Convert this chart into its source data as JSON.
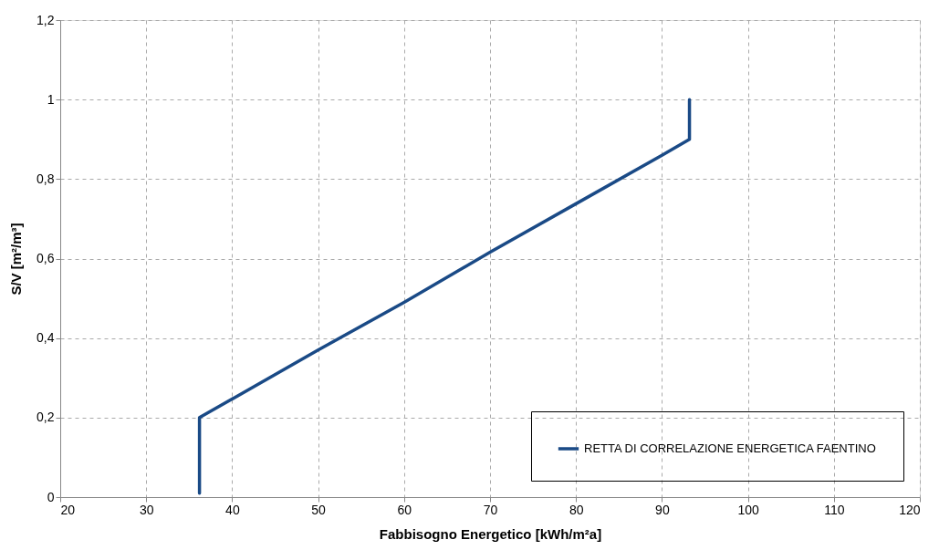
{
  "chart_data": {
    "type": "line",
    "xlabel": "Fabbisogno Energetico [kWh/m²a]",
    "ylabel": "S/V [m²/m³]",
    "series": [
      {
        "name": "RETTA DI CORRELAZIONE ENERGETICA FAENTINO",
        "color": "#1a4a86",
        "x": [
          36.2,
          36.2,
          50,
          60,
          70,
          80,
          90,
          93.2,
          93.2
        ],
        "values": [
          0.01,
          0.2,
          0.37,
          0.49,
          0.616,
          0.738,
          0.86,
          0.9,
          1.0
        ]
      }
    ],
    "xlim": [
      20,
      120
    ],
    "xticks": [
      20,
      30,
      40,
      50,
      60,
      70,
      80,
      90,
      100,
      110,
      120
    ],
    "ylim": [
      0,
      1.2
    ],
    "yticks": [
      0,
      {
        "value": 0.2,
        "label": "0,2"
      },
      {
        "value": 0.4,
        "label": "0,4"
      },
      {
        "value": 0.6,
        "label": "0,6"
      },
      {
        "value": 0.8,
        "label": "0,8"
      },
      1,
      {
        "value": 1.2,
        "label": "1,2"
      }
    ],
    "grid": true,
    "legend": "bottom right",
    "marker": "none",
    "line_style": "solid"
  }
}
